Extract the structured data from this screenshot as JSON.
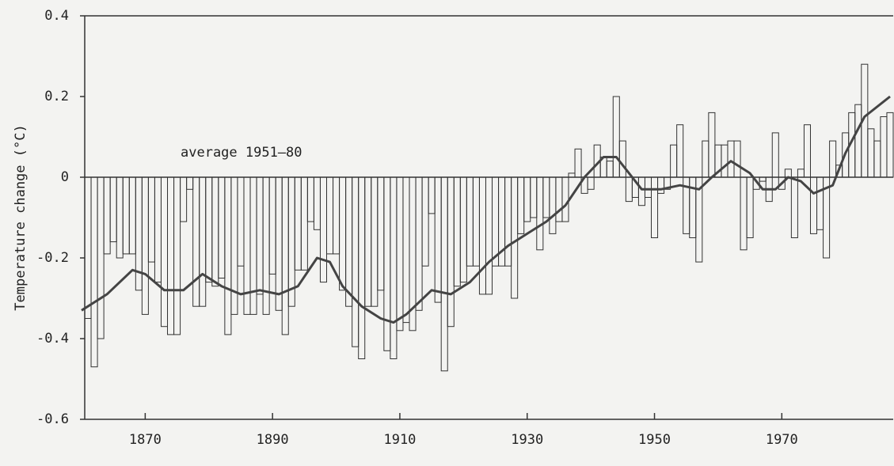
{
  "chart_data": {
    "type": "bar",
    "ylabel": "Temperature change (°C)",
    "annotation": "average 1951–80",
    "xlim": [
      1860.5,
      1987.5
    ],
    "xticks": [
      1870,
      1890,
      1910,
      1930,
      1950,
      1970
    ],
    "ylim": [
      -0.6,
      0.4
    ],
    "yticks": [
      0.4,
      0.2,
      0,
      -0.2,
      -0.4,
      -0.6
    ],
    "color": "#333333",
    "bars": {
      "x": [
        1861,
        1862,
        1863,
        1864,
        1865,
        1866,
        1867,
        1868,
        1869,
        1870,
        1871,
        1872,
        1873,
        1874,
        1875,
        1876,
        1877,
        1878,
        1879,
        1880,
        1881,
        1882,
        1883,
        1884,
        1885,
        1886,
        1887,
        1888,
        1889,
        1890,
        1891,
        1892,
        1893,
        1894,
        1895,
        1896,
        1897,
        1898,
        1899,
        1900,
        1901,
        1902,
        1903,
        1904,
        1905,
        1906,
        1907,
        1908,
        1909,
        1910,
        1911,
        1912,
        1913,
        1914,
        1915,
        1916,
        1917,
        1918,
        1919,
        1920,
        1921,
        1922,
        1923,
        1924,
        1925,
        1926,
        1927,
        1928,
        1929,
        1930,
        1931,
        1932,
        1933,
        1934,
        1935,
        1936,
        1937,
        1938,
        1939,
        1940,
        1941,
        1942,
        1943,
        1944,
        1945,
        1946,
        1947,
        1948,
        1949,
        1950,
        1951,
        1952,
        1953,
        1954,
        1955,
        1956,
        1957,
        1958,
        1959,
        1960,
        1961,
        1962,
        1963,
        1964,
        1965,
        1966,
        1967,
        1968,
        1969,
        1970,
        1971,
        1972,
        1973,
        1974,
        1975,
        1976,
        1977,
        1978,
        1979,
        1980,
        1981,
        1982,
        1983,
        1984,
        1985,
        1986,
        1987
      ],
      "values": [
        -0.35,
        -0.47,
        -0.4,
        -0.19,
        -0.16,
        -0.2,
        -0.19,
        -0.19,
        -0.28,
        -0.34,
        -0.21,
        -0.26,
        -0.37,
        -0.39,
        -0.39,
        -0.11,
        -0.03,
        -0.32,
        -0.32,
        -0.26,
        -0.27,
        -0.25,
        -0.39,
        -0.34,
        -0.22,
        -0.34,
        -0.34,
        -0.29,
        -0.34,
        -0.24,
        -0.33,
        -0.39,
        -0.32,
        -0.23,
        -0.23,
        -0.11,
        -0.13,
        -0.26,
        -0.19,
        -0.19,
        -0.28,
        -0.32,
        -0.42,
        -0.45,
        -0.32,
        -0.32,
        -0.28,
        -0.43,
        -0.45,
        -0.38,
        -0.36,
        -0.38,
        -0.33,
        -0.22,
        -0.09,
        -0.31,
        -0.48,
        -0.37,
        -0.27,
        -0.26,
        -0.22,
        -0.22,
        -0.29,
        -0.29,
        -0.22,
        -0.22,
        -0.22,
        -0.3,
        -0.14,
        -0.11,
        -0.1,
        -0.18,
        -0.1,
        -0.14,
        -0.11,
        -0.11,
        0.01,
        0.07,
        -0.04,
        -0.03,
        0.08,
        0.05,
        0.04,
        0.2,
        0.09,
        -0.06,
        -0.05,
        -0.07,
        -0.05,
        -0.15,
        -0.04,
        -0.03,
        0.08,
        0.13,
        -0.14,
        -0.15,
        -0.21,
        0.09,
        0.16,
        0.08,
        0.08,
        0.09,
        0.09,
        -0.18,
        -0.15,
        -0.03,
        -0.01,
        -0.06,
        0.11,
        -0.03,
        0.02,
        -0.15,
        0.02,
        0.13,
        -0.14,
        -0.13,
        -0.2,
        0.09,
        0.03,
        0.11,
        0.16,
        0.18,
        0.28,
        0.12,
        0.09,
        0.15,
        0.16
      ]
    },
    "smoothed": {
      "x": [
        1860,
        1864,
        1868,
        1870,
        1873,
        1876,
        1879,
        1882,
        1885,
        1888,
        1891,
        1894,
        1897,
        1899,
        1901,
        1904,
        1907,
        1909,
        1911,
        1913,
        1915,
        1918,
        1921,
        1924,
        1927,
        1930,
        1933,
        1936,
        1939,
        1942,
        1944,
        1946,
        1948,
        1951,
        1954,
        1957,
        1959,
        1962,
        1965,
        1967,
        1969,
        1971,
        1973,
        1975,
        1978,
        1980,
        1983,
        1987
      ],
      "values": [
        -0.33,
        -0.29,
        -0.23,
        -0.24,
        -0.28,
        -0.28,
        -0.24,
        -0.27,
        -0.29,
        -0.28,
        -0.29,
        -0.27,
        -0.2,
        -0.21,
        -0.27,
        -0.32,
        -0.35,
        -0.36,
        -0.34,
        -0.31,
        -0.28,
        -0.29,
        -0.26,
        -0.21,
        -0.17,
        -0.14,
        -0.11,
        -0.07,
        0.0,
        0.05,
        0.05,
        0.01,
        -0.03,
        -0.03,
        -0.02,
        -0.03,
        0.0,
        0.04,
        0.01,
        -0.03,
        -0.03,
        0.0,
        -0.01,
        -0.04,
        -0.02,
        0.06,
        0.15,
        0.2
      ]
    }
  }
}
